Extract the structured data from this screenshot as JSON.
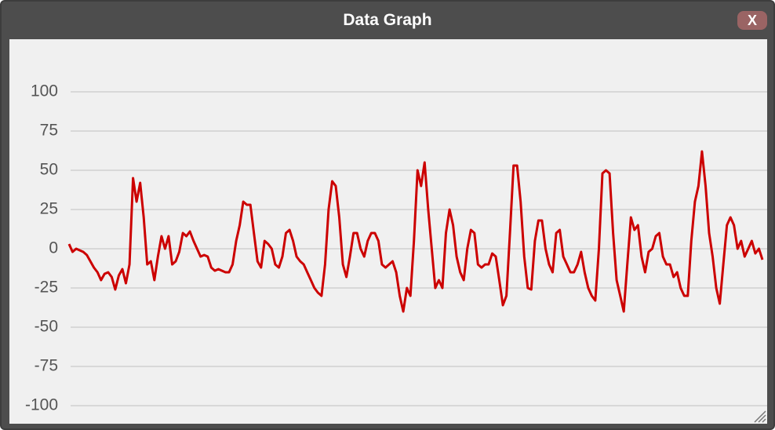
{
  "window": {
    "title": "Data Graph",
    "close_label": "X"
  },
  "chart_data": {
    "type": "line",
    "color": "#cc0000",
    "grid": true,
    "ylim": [
      -110,
      120
    ],
    "yticks": [
      100,
      75,
      50,
      25,
      0,
      -25,
      -50,
      -75,
      -100
    ],
    "values": [
      3,
      -2,
      0,
      -1,
      -2,
      -4,
      -8,
      -12,
      -15,
      -20,
      -16,
      -15,
      -18,
      -26,
      -17,
      -13,
      -22,
      -10,
      45,
      30,
      42,
      20,
      -10,
      -8,
      -20,
      -5,
      8,
      0,
      8,
      -10,
      -8,
      -2,
      10,
      8,
      11,
      5,
      0,
      -5,
      -4,
      -5,
      -12,
      -14,
      -13,
      -14,
      -15,
      -15,
      -10,
      5,
      15,
      30,
      28,
      28,
      10,
      -8,
      -12,
      5,
      3,
      0,
      -10,
      -12,
      -5,
      10,
      12,
      5,
      -5,
      -8,
      -10,
      -15,
      -20,
      -25,
      -28,
      -30,
      -10,
      25,
      43,
      40,
      20,
      -10,
      -18,
      -5,
      10,
      10,
      0,
      -5,
      5,
      10,
      10,
      5,
      -10,
      -12,
      -10,
      -8,
      -15,
      -30,
      -40,
      -25,
      -30,
      5,
      50,
      40,
      55,
      25,
      0,
      -25,
      -20,
      -25,
      10,
      25,
      15,
      -5,
      -15,
      -20,
      0,
      12,
      10,
      -10,
      -12,
      -10,
      -10,
      -3,
      -5,
      -20,
      -36,
      -30,
      10,
      53,
      53,
      30,
      -5,
      -25,
      -26,
      5,
      18,
      18,
      0,
      -10,
      -15,
      10,
      12,
      -5,
      -10,
      -15,
      -15,
      -10,
      -2,
      -15,
      -25,
      -30,
      -33,
      0,
      48,
      50,
      48,
      10,
      -20,
      -30,
      -40,
      -10,
      20,
      12,
      15,
      -5,
      -15,
      -2,
      0,
      8,
      10,
      -5,
      -10,
      -10,
      -18,
      -15,
      -25,
      -30,
      -30,
      5,
      30,
      40,
      62,
      40,
      10,
      -5,
      -25,
      -35,
      -10,
      15,
      20,
      15,
      0,
      5,
      -5,
      0,
      5,
      -3,
      0,
      -7
    ]
  }
}
